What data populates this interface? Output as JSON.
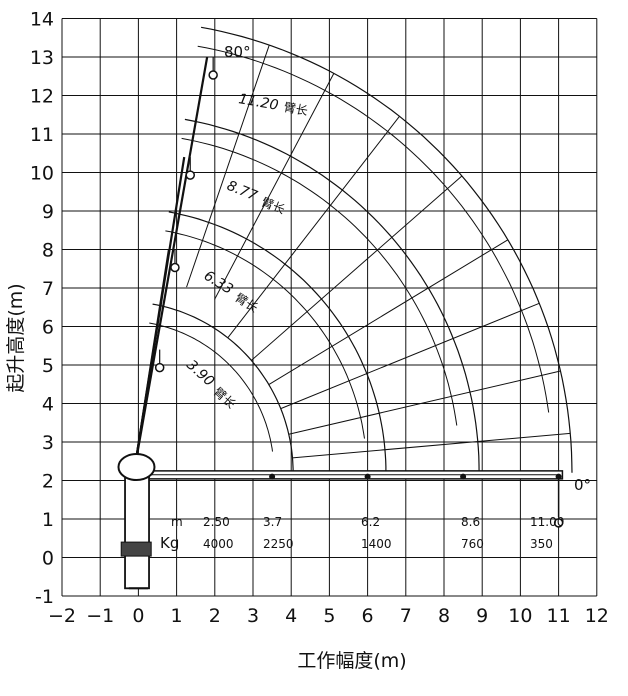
{
  "diagram": {
    "xlabel": "工作幅度(m)",
    "ylabel": "起升高度(m)",
    "x_ticks": [
      "−2",
      "−1",
      "0",
      "1",
      "2",
      "3",
      "4",
      "5",
      "6",
      "7",
      "8",
      "9",
      "10",
      "11",
      "12"
    ],
    "y_ticks": [
      "-1",
      "0",
      "1",
      "2",
      "3",
      "4",
      "5",
      "6",
      "7",
      "8",
      "9",
      "10",
      "11",
      "12",
      "13",
      "14"
    ],
    "angle_top": "80°",
    "angle_bottom": "0°",
    "boom_labels": [
      {
        "length": "11.20",
        "unit": "臂长"
      },
      {
        "length": "8.77",
        "unit": "臂长"
      },
      {
        "length": "6.33",
        "unit": "臂长"
      },
      {
        "length": "3.90",
        "unit": "臂长"
      }
    ],
    "load_table": {
      "row1_label": "m",
      "row2_label": "Kg",
      "radius": [
        "2.50",
        "3.7",
        "6.2",
        "8.6",
        "11.00"
      ],
      "load": [
        "4000",
        "2250",
        "1400",
        "760",
        "350"
      ]
    }
  },
  "chart_data": {
    "type": "scatter",
    "xlabel": "工作幅度(m)",
    "ylabel": "起升高度(m)",
    "xlim": [
      -2,
      12
    ],
    "ylim": [
      -1,
      14
    ],
    "grid": true,
    "boom_pivot": [
      -0.4,
      2.2
    ],
    "boom_lengths": [
      3.9,
      6.33,
      8.77,
      11.2
    ],
    "angle_range_deg": [
      0,
      80
    ],
    "series": [
      {
        "name": "11.20",
        "x_at_80deg": 1.8,
        "y_at_80deg": 13.0,
        "x_at_0deg": 11.0,
        "y_at_0deg": 2.1
      },
      {
        "name": "8.77",
        "x_at_80deg": 1.2,
        "y_at_80deg": 10.4,
        "x_at_0deg": 8.5,
        "y_at_0deg": 2.1
      },
      {
        "name": "6.33",
        "x_at_80deg": 0.8,
        "y_at_80deg": 8.0,
        "x_at_0deg": 6.0,
        "y_at_0deg": 2.1
      },
      {
        "name": "3.90",
        "x_at_80deg": 0.4,
        "y_at_80deg": 5.4,
        "x_at_0deg": 3.5,
        "y_at_0deg": 2.1
      }
    ],
    "load_chart": [
      {
        "radius_m": 2.5,
        "load_kg": 4000
      },
      {
        "radius_m": 3.7,
        "load_kg": 2250
      },
      {
        "radius_m": 6.2,
        "load_kg": 1400
      },
      {
        "radius_m": 8.6,
        "load_kg": 760
      },
      {
        "radius_m": 11.0,
        "load_kg": 350
      }
    ]
  }
}
